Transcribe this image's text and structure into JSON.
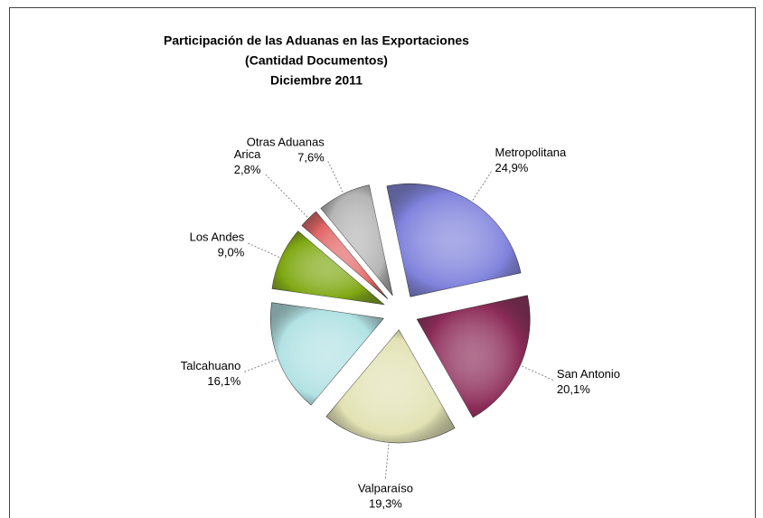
{
  "chart_data": {
    "type": "pie",
    "title_lines": [
      "Participación de las Aduanas en las Exportaciones",
      "(Cantidad Documentos)",
      "Diciembre 2011"
    ],
    "categories": [
      "Metropolitana",
      "San Antonio",
      "Valparaíso",
      "Talcahuano",
      "Los Andes",
      "Arica",
      "Otras Aduanas"
    ],
    "values": [
      24.9,
      20.1,
      19.3,
      16.1,
      9.0,
      2.8,
      7.6
    ],
    "value_labels": [
      "24,9%",
      "20,1%",
      "19,3%",
      "16,1%",
      "9,0%",
      "2,8%",
      "7,6%"
    ],
    "colors": [
      "#7f82dc",
      "#8c2b58",
      "#e2e2b4",
      "#b2e2e4",
      "#7fa812",
      "#e26464",
      "#b4b4b4"
    ]
  }
}
